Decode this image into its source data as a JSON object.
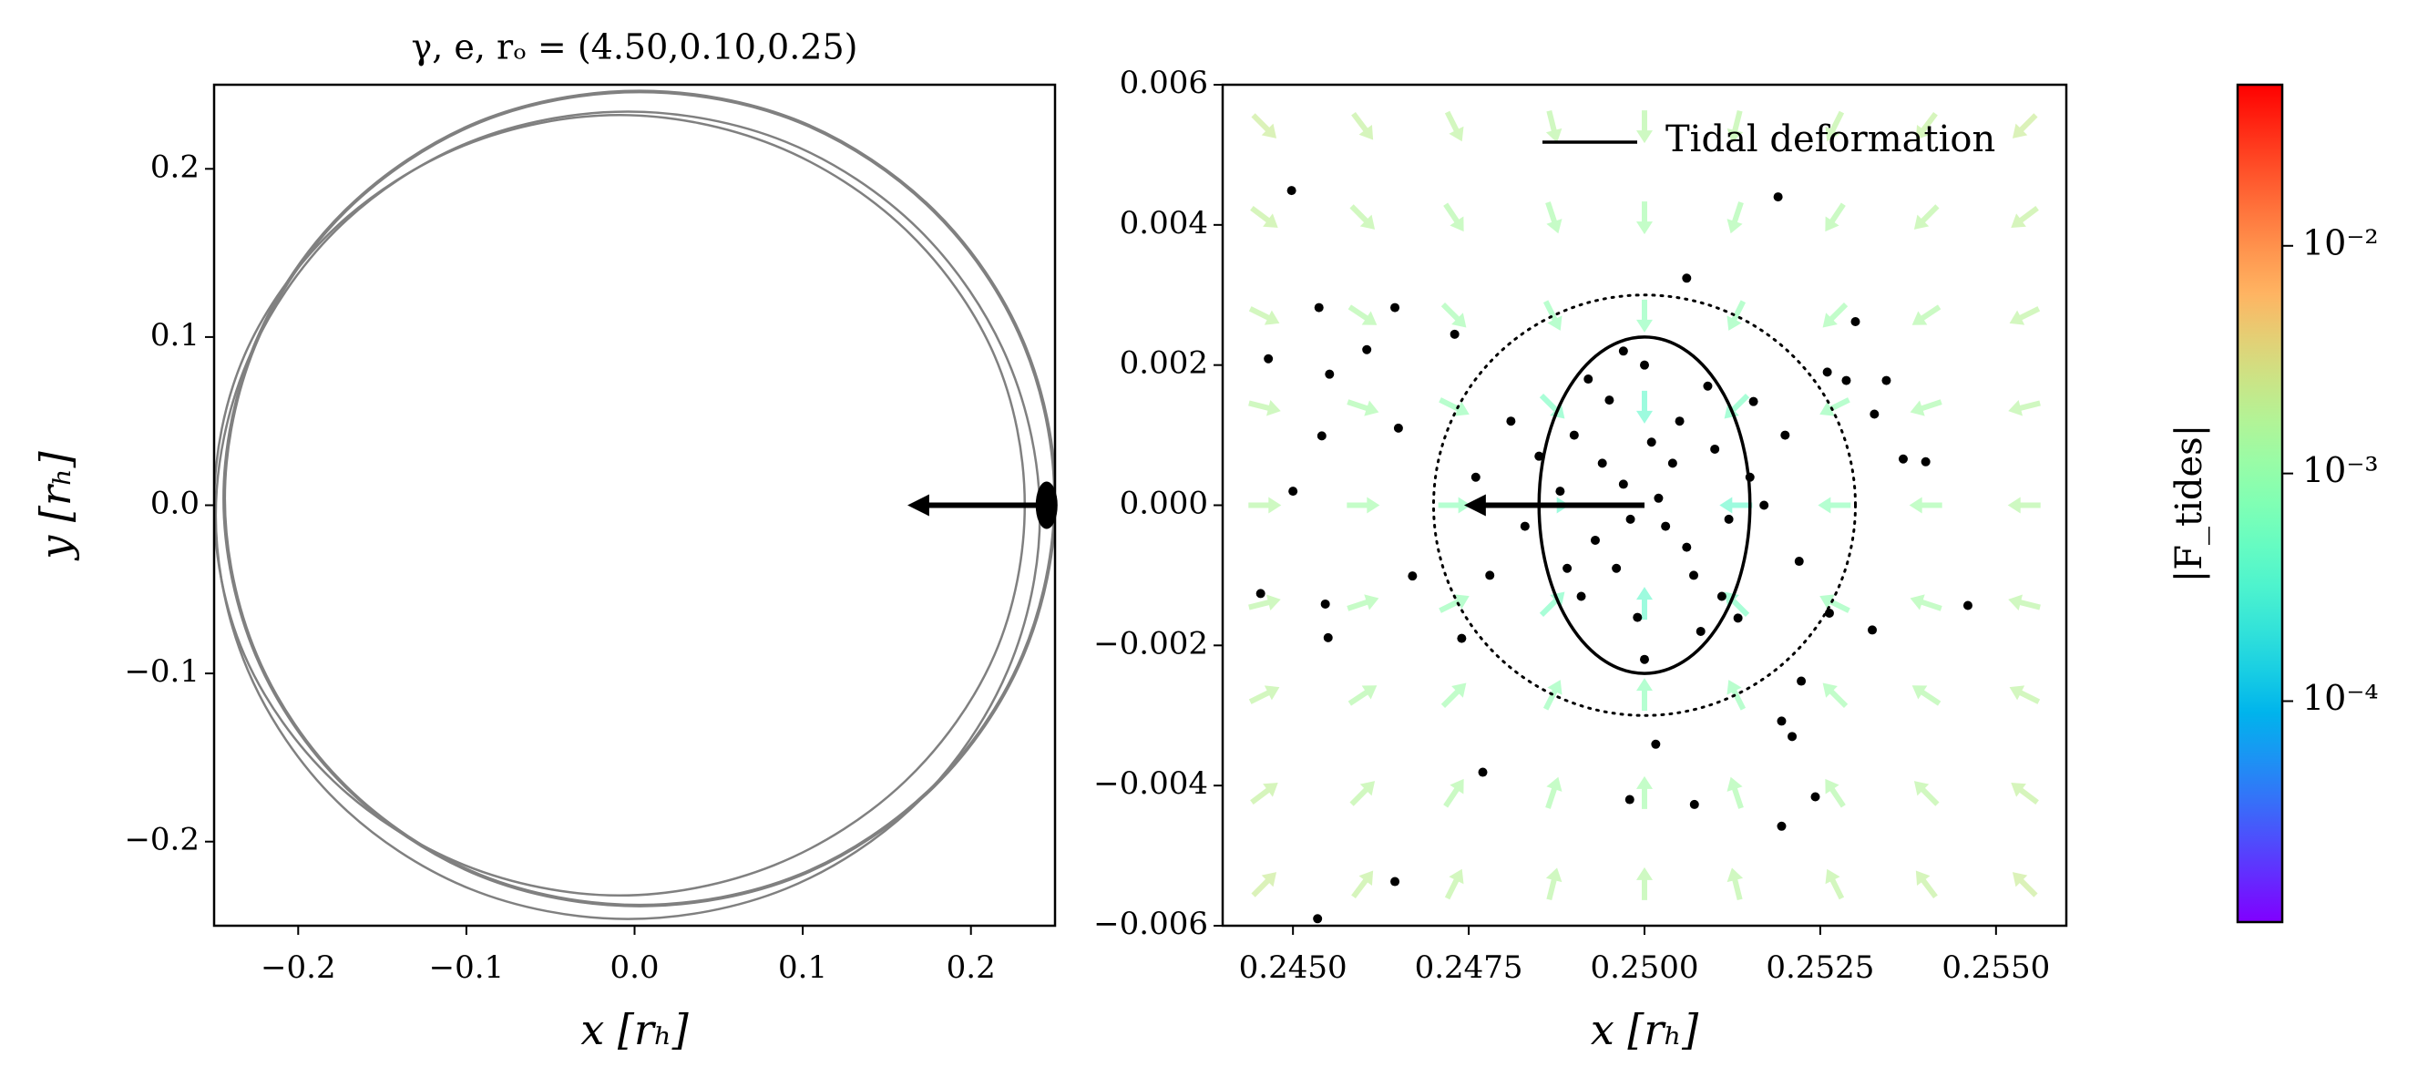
{
  "chart_data": [
    {
      "type": "orbit",
      "title": "γ, e, rₒ = (4.50,0.10,0.25)",
      "xlabel": "x [rₕ]",
      "ylabel": "y [rₕ]",
      "xlim": [
        -0.25,
        0.25
      ],
      "ylim": [
        -0.25,
        0.25
      ],
      "xticks": [
        {
          "value": -0.2,
          "label": "−0.2"
        },
        {
          "value": -0.1,
          "label": "−0.1"
        },
        {
          "value": 0,
          "label": "0.0"
        },
        0.1,
        0.2
      ],
      "yticks": [
        {
          "value": -0.2,
          "label": "−0.2"
        },
        {
          "value": -0.1,
          "label": "−0.1"
        },
        {
          "value": 0,
          "label": "0.0"
        },
        0.1,
        0.2
      ],
      "color": "#808080",
      "series": [
        {
          "x": [
            0.232,
            0.214,
            0.161,
            0.083,
            -0.009,
            -0.101,
            -0.179,
            -0.232,
            -0.25,
            -0.232,
            -0.179,
            -0.101,
            -0.009,
            0.083,
            0.161,
            0.214
          ],
          "y": [
            0,
            0.089,
            0.164,
            0.214,
            0.232,
            0.214,
            0.164,
            0.089,
            0,
            -0.089,
            -0.164,
            -0.214,
            -0.232,
            -0.214,
            -0.164,
            -0.089
          ]
        },
        {
          "x": [
            0.25,
            0.231,
            0.178,
            0.098,
            0.003,
            -0.092,
            -0.172,
            -0.225,
            -0.244,
            -0.225,
            -0.172,
            -0.092,
            0.003,
            0.098,
            0.178,
            0.231
          ],
          "y": [
            0.004,
            0.097,
            0.175,
            0.228,
            0.246,
            0.228,
            0.175,
            0.097,
            0.004,
            -0.089,
            -0.167,
            -0.22,
            -0.238,
            -0.22,
            -0.167,
            -0.089
          ]
        },
        {
          "x": [
            0.241,
            0.222,
            0.169,
            0.09,
            -0.004,
            -0.098,
            -0.177,
            -0.23,
            -0.249,
            -0.23,
            -0.177,
            -0.098,
            -0.004,
            0.09,
            0.169,
            0.222
          ],
          "y": [
            -0.006,
            0.086,
            0.164,
            0.216,
            0.234,
            0.216,
            0.164,
            0.086,
            -0.006,
            -0.098,
            -0.176,
            -0.228,
            -0.246,
            -0.228,
            -0.176,
            -0.098
          ]
        }
      ],
      "cluster": {
        "x": 0.245,
        "y": 0
      },
      "arrow": {
        "x": [
          0.25,
          0.165
        ],
        "y": [
          0,
          0
        ]
      }
    },
    {
      "type": "quiver",
      "xlabel": "x [rₕ]",
      "xlim": [
        0.244,
        0.256
      ],
      "ylim": [
        -0.006,
        0.006
      ],
      "xticks": [
        {
          "value": 0.245,
          "label": "0.2450"
        },
        0.2475,
        {
          "value": 0.25,
          "label": "0.2500"
        },
        0.2525,
        {
          "value": 0.255,
          "label": "0.2550"
        }
      ],
      "yticks": [
        {
          "value": -0.006,
          "label": "−0.006"
        },
        {
          "value": -0.004,
          "label": "−0.004"
        },
        {
          "value": -0.002,
          "label": "−0.002"
        },
        {
          "value": 0,
          "label": "0.000"
        },
        0.002,
        0.004,
        0.006
      ],
      "legend": "upper right",
      "quiver": {
        "x": [
          0.2446,
          0.246,
          0.2473,
          0.2487,
          0.25,
          0.2513,
          0.2527,
          0.254,
          0.2554
        ],
        "y": [
          -0.0054,
          -0.0041,
          -0.0027,
          -0.0014,
          0,
          0.0014,
          0.0027,
          0.0041,
          0.0054
        ],
        "u": [
          [
            0.0016,
            0.0012,
            0.0008,
            0.0004,
            0,
            -0.0004,
            -0.0008,
            -0.0012,
            -0.0016
          ],
          [
            0.0016,
            0.0012,
            0.0008,
            0.0004,
            0,
            -0.0004,
            -0.0008,
            -0.0012,
            -0.0016
          ],
          [
            0.0016,
            0.0012,
            0.0008,
            0.0004,
            0,
            -0.0004,
            -0.0008,
            -0.0012,
            -0.0016
          ],
          [
            0.0016,
            0.0012,
            0.0008,
            0.0004,
            0,
            -0.0004,
            -0.0008,
            -0.0012,
            -0.0016
          ],
          [
            0.0016,
            0.0012,
            0.0008,
            0.0004,
            0,
            -0.0004,
            -0.0008,
            -0.0012,
            -0.0016
          ],
          [
            0.0016,
            0.0012,
            0.0008,
            0.0004,
            0,
            -0.0004,
            -0.0008,
            -0.0012,
            -0.0016
          ],
          [
            0.0016,
            0.0012,
            0.0008,
            0.0004,
            0,
            -0.0004,
            -0.0008,
            -0.0012,
            -0.0016
          ],
          [
            0.0016,
            0.0012,
            0.0008,
            0.0004,
            0,
            -0.0004,
            -0.0008,
            -0.0012,
            -0.0016
          ],
          [
            0.0016,
            0.0012,
            0.0008,
            0.0004,
            0,
            -0.0004,
            -0.0008,
            -0.0012,
            -0.0016
          ]
        ],
        "v": [
          [
            0.0016,
            0.0016,
            0.0016,
            0.0016,
            0.0016,
            0.0016,
            0.0016,
            0.0016,
            0.0016
          ],
          [
            0.0012,
            0.0012,
            0.0012,
            0.0012,
            0.0012,
            0.0012,
            0.0012,
            0.0012,
            0.0012
          ],
          [
            0.0008,
            0.0008,
            0.0008,
            0.0008,
            0.0008,
            0.0008,
            0.0008,
            0.0008,
            0.0008
          ],
          [
            0.0004,
            0.0004,
            0.0004,
            0.0004,
            0.0004,
            0.0004,
            0.0004,
            0.0004,
            0.0004
          ],
          [
            0,
            0,
            0,
            0,
            0,
            0,
            0,
            0,
            0
          ],
          [
            -0.0004,
            -0.0004,
            -0.0004,
            -0.0004,
            -0.0004,
            -0.0004,
            -0.0004,
            -0.0004,
            -0.0004
          ],
          [
            -0.0008,
            -0.0008,
            -0.0008,
            -0.0008,
            -0.0008,
            -0.0008,
            -0.0008,
            -0.0008,
            -0.0008
          ],
          [
            -0.0012,
            -0.0012,
            -0.0012,
            -0.0012,
            -0.0012,
            -0.0012,
            -0.0012,
            -0.0012,
            -0.0012
          ],
          [
            -0.0016,
            -0.0016,
            -0.0016,
            -0.0016,
            -0.0016,
            -0.0016,
            -0.0016,
            -0.0016,
            -0.0016
          ]
        ]
      },
      "scatter": {
        "color": "#000000",
        "x": [
          0.24498,
          0.24465,
          0.24537,
          0.24552,
          0.24541,
          0.245,
          0.24454,
          0.24546,
          0.2455,
          0.24605,
          0.24645,
          0.2465,
          0.2467,
          0.24645,
          0.24535,
          0.2473,
          0.2477,
          0.2506,
          0.2519,
          0.253,
          0.25287,
          0.25344,
          0.25327,
          0.25368,
          0.254,
          0.2546,
          0.25324,
          0.25263,
          0.25223,
          0.25195,
          0.2521,
          0.25243,
          0.25195,
          0.25071,
          0.24979,
          0.25016,
          0.25133,
          0.25155,
          0.249,
          0.2495,
          0.25,
          0.2505,
          0.251,
          0.2493,
          0.2497,
          0.2503,
          0.2507,
          0.2499,
          0.2488,
          0.2512,
          0.2496,
          0.2504,
          0.2491,
          0.2509,
          0.2501,
          0.2494,
          0.2506,
          0.2498,
          0.2502,
          0.2485,
          0.2515,
          0.2489,
          0.2511,
          0.25,
          0.2497,
          0.2483,
          0.2517,
          0.2492,
          0.2508,
          0.2478,
          0.2481,
          0.252,
          0.2522,
          0.2476,
          0.2474,
          0.2526
        ],
        "y": [
          0.00449,
          0.00209,
          0.00282,
          0.00187,
          0.00099,
          0.0002,
          -0.00126,
          -0.00141,
          -0.00189,
          0.00222,
          0.00282,
          0.0011,
          -0.00101,
          -0.00537,
          -0.0059,
          0.00244,
          -0.00381,
          0.00324,
          0.0044,
          0.00262,
          0.00178,
          0.00178,
          0.0013,
          0.00066,
          0.00062,
          -0.00143,
          -0.00178,
          -0.00154,
          -0.00251,
          -0.00308,
          -0.0033,
          -0.00416,
          -0.00458,
          -0.00427,
          -0.0042,
          -0.00341,
          -0.00161,
          0.00148,
          0.001,
          0.0015,
          0.002,
          0.0012,
          0.0008,
          -0.0005,
          0.0003,
          -0.0003,
          -0.001,
          -0.0016,
          0.0002,
          -0.0002,
          -0.0009,
          0.0006,
          -0.0013,
          0.0017,
          0.0009,
          0.0006,
          -0.0006,
          -0.0002,
          0.0001,
          0.0007,
          0.0004,
          -0.0009,
          -0.0013,
          -0.0022,
          0.0022,
          -0.0003,
          0,
          0.0018,
          -0.0018,
          -0.001,
          0.0012,
          0.001,
          -0.0008,
          0.0004,
          -0.0019,
          0.0019
        ]
      },
      "ellipse": {
        "name": "Tidal deformation",
        "center": [
          0.25,
          0
        ],
        "rx": 0.0015,
        "ry": 0.0024
      },
      "circle": {
        "center": [
          0.25,
          0
        ],
        "radius": 0.003
      },
      "arrow": {
        "x": [
          0.25,
          0.2475
        ],
        "y": [
          0,
          0
        ]
      }
    },
    {
      "type": "colorbar",
      "label": "|F_tides|",
      "log": true,
      "colormap": "rainbow",
      "lim": [
        1.07e-05,
        0.051
      ],
      "ticks": [
        {
          "value": 0.0001,
          "label": "10⁻⁴"
        },
        {
          "value": 0.001,
          "label": "10⁻³"
        },
        {
          "value": 0.01,
          "label": "10⁻²"
        }
      ]
    }
  ]
}
